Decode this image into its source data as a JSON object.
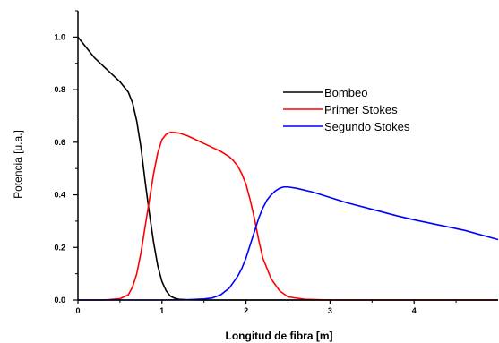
{
  "chart_data": {
    "type": "line",
    "xlabel": "Longitud de fibra [m]",
    "ylabel": "Potencia [u.a.]",
    "xlim": [
      0,
      5
    ],
    "ylim": [
      0,
      1.1
    ],
    "xticks": [
      {
        "value": 0,
        "label": "0"
      },
      {
        "value": 1,
        "label": "1"
      },
      {
        "value": 2,
        "label": "2"
      },
      {
        "value": 3,
        "label": "3"
      },
      {
        "value": 4,
        "label": "4"
      }
    ],
    "yticks": [
      {
        "value": 0.0,
        "label": "0.0"
      },
      {
        "value": 0.2,
        "label": "0.2"
      },
      {
        "value": 0.4,
        "label": "0.4"
      },
      {
        "value": 0.6,
        "label": "0.6"
      },
      {
        "value": 0.8,
        "label": "0.8"
      },
      {
        "value": 1.0,
        "label": "1.0"
      }
    ],
    "grid": false,
    "legend_position": "top-right",
    "series": [
      {
        "name": "Bombeo",
        "color": "#000000",
        "x": [
          0,
          0.1,
          0.2,
          0.3,
          0.4,
          0.5,
          0.6,
          0.65,
          0.7,
          0.75,
          0.8,
          0.85,
          0.9,
          0.95,
          1.0,
          1.05,
          1.1,
          1.15,
          1.2,
          1.3,
          1.5,
          1.7,
          2.0,
          5.0
        ],
        "y": [
          1.0,
          0.96,
          0.92,
          0.89,
          0.86,
          0.83,
          0.79,
          0.75,
          0.68,
          0.58,
          0.45,
          0.33,
          0.22,
          0.13,
          0.07,
          0.035,
          0.015,
          0.007,
          0.003,
          0.001,
          0.0,
          0.0,
          0.0,
          0.0
        ]
      },
      {
        "name": "Primer Stokes",
        "color": "#ff0000",
        "x": [
          0,
          0.3,
          0.5,
          0.6,
          0.65,
          0.7,
          0.75,
          0.8,
          0.85,
          0.9,
          0.95,
          1.0,
          1.05,
          1.1,
          1.15,
          1.2,
          1.3,
          1.4,
          1.5,
          1.6,
          1.7,
          1.8,
          1.85,
          1.9,
          1.95,
          2.0,
          2.05,
          2.1,
          2.15,
          2.2,
          2.3,
          2.4,
          2.5,
          2.7,
          3.0,
          5.0
        ],
        "y": [
          0.0,
          0.0,
          0.005,
          0.02,
          0.05,
          0.1,
          0.18,
          0.28,
          0.38,
          0.48,
          0.56,
          0.61,
          0.63,
          0.638,
          0.637,
          0.635,
          0.625,
          0.61,
          0.595,
          0.58,
          0.565,
          0.545,
          0.53,
          0.51,
          0.48,
          0.44,
          0.38,
          0.31,
          0.23,
          0.16,
          0.08,
          0.035,
          0.012,
          0.003,
          0.0,
          0.0
        ]
      },
      {
        "name": "Segundo Stokes",
        "color": "#0000ff",
        "x": [
          0,
          1.0,
          1.3,
          1.5,
          1.6,
          1.7,
          1.8,
          1.9,
          1.95,
          2.0,
          2.05,
          2.1,
          2.15,
          2.2,
          2.25,
          2.3,
          2.35,
          2.4,
          2.45,
          2.5,
          2.6,
          2.8,
          3.0,
          3.2,
          3.5,
          3.8,
          4.0,
          4.3,
          4.6,
          5.0
        ],
        "y": [
          0.0,
          0.0,
          0.001,
          0.004,
          0.008,
          0.02,
          0.045,
          0.09,
          0.12,
          0.16,
          0.21,
          0.26,
          0.31,
          0.35,
          0.38,
          0.4,
          0.415,
          0.425,
          0.43,
          0.43,
          0.425,
          0.41,
          0.39,
          0.37,
          0.345,
          0.32,
          0.305,
          0.285,
          0.265,
          0.23
        ]
      }
    ]
  }
}
